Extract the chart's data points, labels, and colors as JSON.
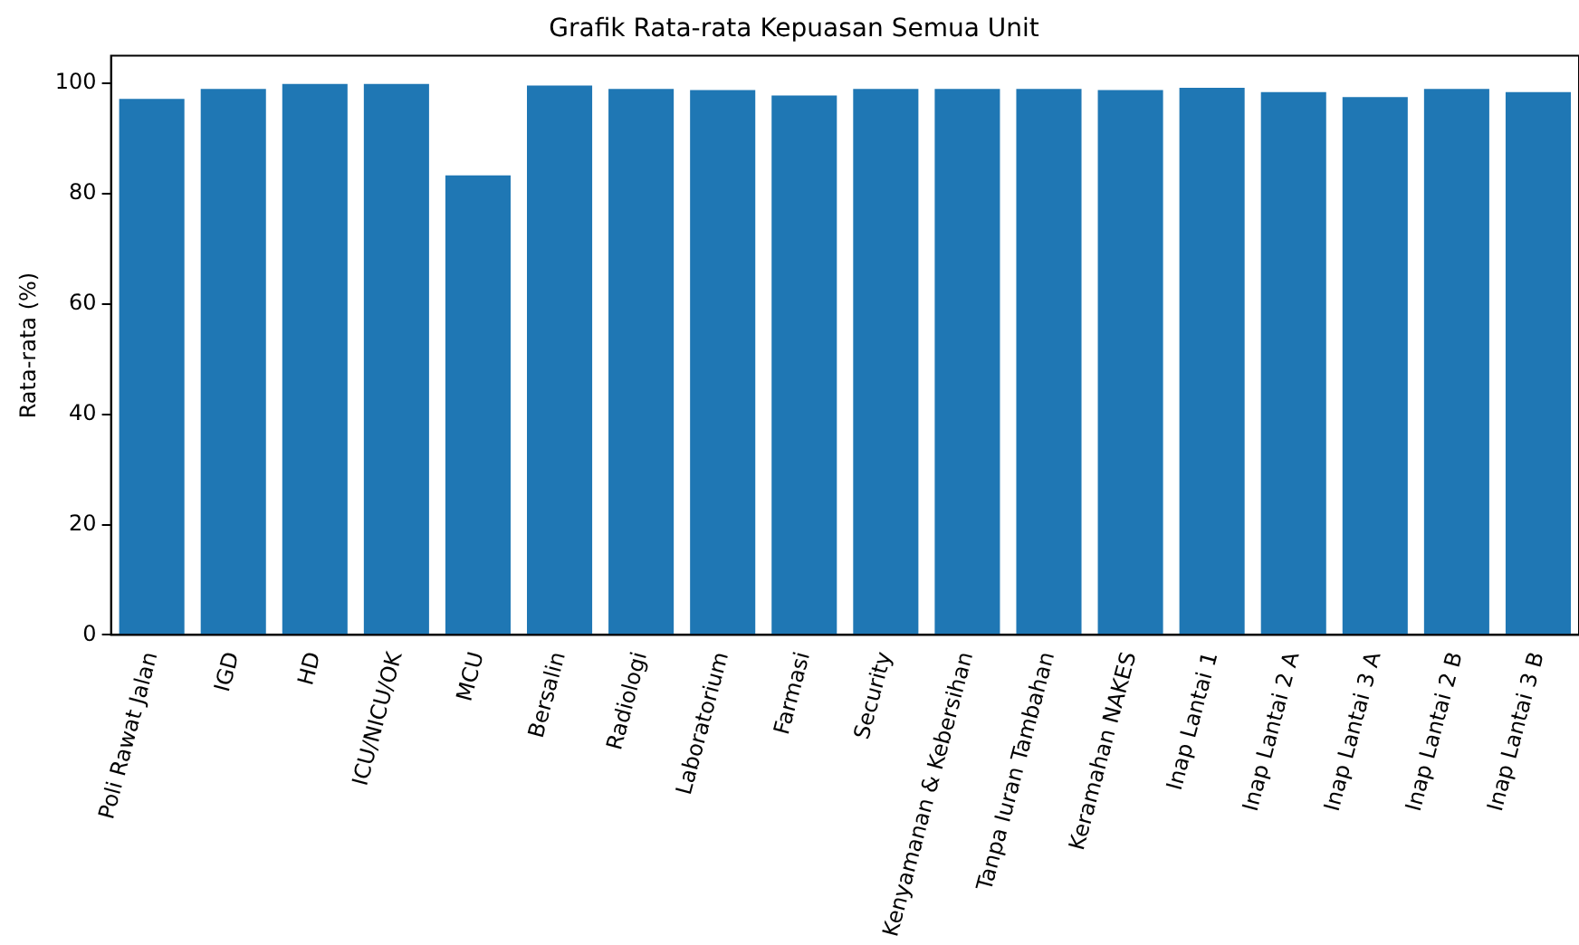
{
  "chart_data": {
    "type": "bar",
    "title": "Grafik Rata-rata Kepuasan Semua Unit",
    "ylabel": "Rata-rata (%)",
    "categories": [
      "Poli Rawat Jalan",
      "IGD",
      "HD",
      "ICU/NICU/OK",
      "MCU",
      "Bersalin",
      "Radiologi",
      "Laboratorium",
      "Farmasi",
      "Security",
      "Kenyamanan & Kebersihan",
      "Tanpa Iuran Tambahan",
      "Keramahan NAKES",
      "Inap Lantai 1",
      "Inap Lantai 2 A",
      "Inap Lantai 3 A",
      "Inap Lantai 2 B",
      "Inap Lantai 3 B"
    ],
    "values": [
      97.2,
      99.0,
      99.9,
      99.9,
      83.3,
      99.6,
      99.0,
      98.8,
      97.8,
      99.0,
      99.0,
      99.0,
      98.8,
      99.2,
      98.4,
      97.5,
      99.0,
      98.4
    ],
    "color": "#1f77b4",
    "ylim": [
      0,
      105
    ],
    "yticks": [
      0,
      20,
      40,
      60,
      80,
      100
    ],
    "grid": false,
    "legend": false
  }
}
